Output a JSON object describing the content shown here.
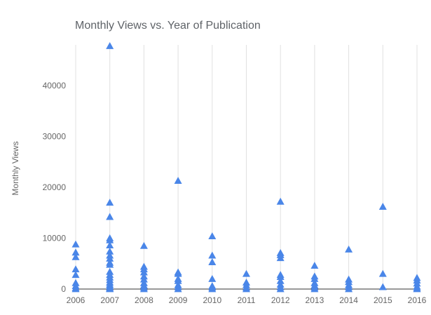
{
  "chart_data": {
    "type": "scatter",
    "title": "Monthly Views vs. Year of Publication",
    "xlabel": "",
    "ylabel": "Monthly Views",
    "x_ticks": [
      "2006",
      "2007",
      "2008",
      "2009",
      "2010",
      "2011",
      "2012",
      "2013",
      "2014",
      "2015",
      "2016"
    ],
    "y_ticks": [
      "0",
      "10000",
      "20000",
      "30000",
      "40000"
    ],
    "xlim": [
      2006,
      2016
    ],
    "ylim": [
      0,
      48000
    ],
    "grid": "vertical",
    "marker": "triangle",
    "color": "#4a86e8",
    "points": [
      [
        2006,
        8800
      ],
      [
        2006,
        7200
      ],
      [
        2006,
        6300
      ],
      [
        2006,
        3900
      ],
      [
        2006,
        2800
      ],
      [
        2006,
        1200
      ],
      [
        2006,
        600
      ],
      [
        2006,
        200
      ],
      [
        2006,
        0
      ],
      [
        2007,
        47800
      ],
      [
        2007,
        17000
      ],
      [
        2007,
        14200
      ],
      [
        2007,
        10000
      ],
      [
        2007,
        9600
      ],
      [
        2007,
        8600
      ],
      [
        2007,
        7400
      ],
      [
        2007,
        6600
      ],
      [
        2007,
        6000
      ],
      [
        2007,
        5200
      ],
      [
        2007,
        4800
      ],
      [
        2007,
        3400
      ],
      [
        2007,
        2800
      ],
      [
        2007,
        2300
      ],
      [
        2007,
        1800
      ],
      [
        2007,
        1300
      ],
      [
        2007,
        900
      ],
      [
        2007,
        600
      ],
      [
        2007,
        300
      ],
      [
        2007,
        100
      ],
      [
        2007,
        0
      ],
      [
        2008,
        8500
      ],
      [
        2008,
        4400
      ],
      [
        2008,
        3900
      ],
      [
        2008,
        3300
      ],
      [
        2008,
        2500
      ],
      [
        2008,
        1900
      ],
      [
        2008,
        1200
      ],
      [
        2008,
        700
      ],
      [
        2008,
        300
      ],
      [
        2008,
        0
      ],
      [
        2009,
        21300
      ],
      [
        2009,
        3300
      ],
      [
        2009,
        3000
      ],
      [
        2009,
        2000
      ],
      [
        2009,
        1600
      ],
      [
        2009,
        800
      ],
      [
        2009,
        400
      ],
      [
        2009,
        0
      ],
      [
        2010,
        10400
      ],
      [
        2010,
        6600
      ],
      [
        2010,
        5300
      ],
      [
        2010,
        2000
      ],
      [
        2010,
        600
      ],
      [
        2010,
        300
      ],
      [
        2010,
        0
      ],
      [
        2011,
        3000
      ],
      [
        2011,
        1300
      ],
      [
        2011,
        800
      ],
      [
        2011,
        300
      ],
      [
        2011,
        0
      ],
      [
        2012,
        17200
      ],
      [
        2012,
        7100
      ],
      [
        2012,
        6700
      ],
      [
        2012,
        6100
      ],
      [
        2012,
        2800
      ],
      [
        2012,
        2400
      ],
      [
        2012,
        1600
      ],
      [
        2012,
        900
      ],
      [
        2012,
        400
      ],
      [
        2012,
        0
      ],
      [
        2013,
        4600
      ],
      [
        2013,
        2500
      ],
      [
        2013,
        2000
      ],
      [
        2013,
        1200
      ],
      [
        2013,
        700
      ],
      [
        2013,
        300
      ],
      [
        2013,
        0
      ],
      [
        2014,
        7800
      ],
      [
        2014,
        1900
      ],
      [
        2014,
        1400
      ],
      [
        2014,
        800
      ],
      [
        2014,
        400
      ],
      [
        2014,
        0
      ],
      [
        2015,
        16200
      ],
      [
        2015,
        3000
      ],
      [
        2015,
        400
      ],
      [
        2016,
        2200
      ],
      [
        2016,
        1700
      ],
      [
        2016,
        1100
      ],
      [
        2016,
        500
      ],
      [
        2016,
        200
      ],
      [
        2016,
        0
      ]
    ]
  }
}
